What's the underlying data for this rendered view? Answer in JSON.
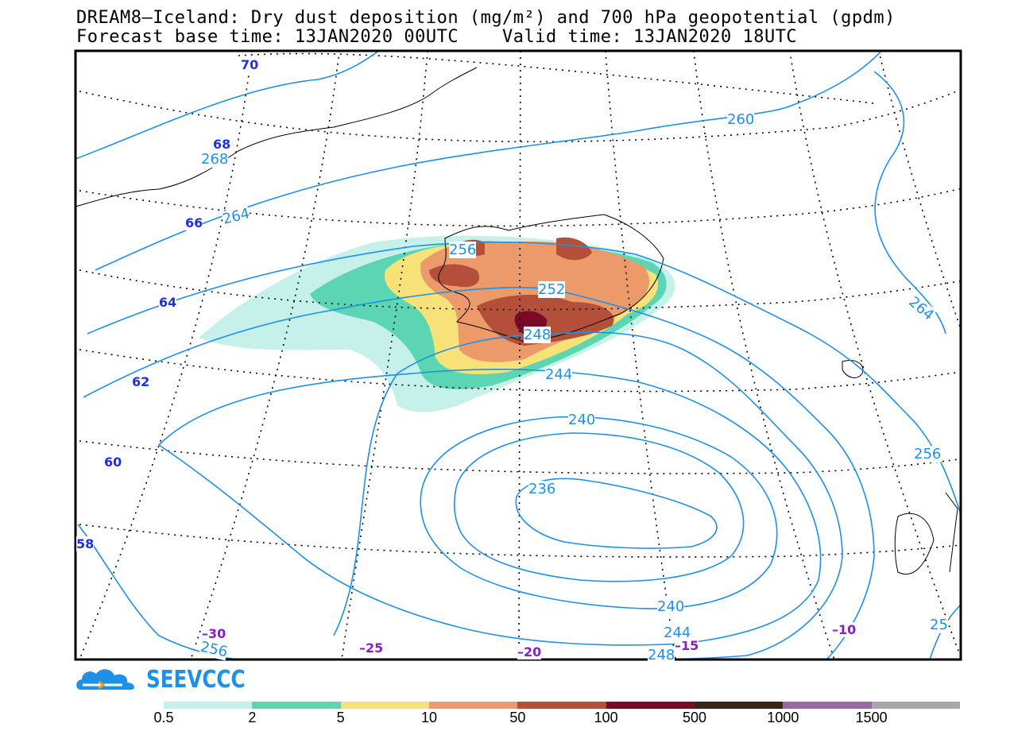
{
  "header": {
    "title_line1": "DREAM8–Iceland: Dry dust deposition (mg/m²) and 700 hPa geopotential (gpdm)",
    "title_line2": "Forecast base time: 13JAN2020 00UTC    Valid time: 13JAN2020 18UTC"
  },
  "map": {
    "latitude_labels": [
      "70",
      "68",
      "66",
      "64",
      "62",
      "60",
      "58"
    ],
    "longitude_labels": [
      "–30",
      "–25",
      "–20",
      "–15",
      "–10"
    ],
    "contour_labels": [
      "260",
      "268",
      "264",
      "256",
      "252",
      "248",
      "244",
      "240",
      "236",
      "264",
      "256",
      "256",
      "240",
      "244",
      "248",
      "25"
    ],
    "colors": {
      "contour": "#1e90e8",
      "latitude_label": "#2030e0",
      "longitude_label": "#8a1fc0"
    }
  },
  "logo": {
    "text": "SEEVCCC"
  },
  "legend": {
    "bins": [
      {
        "label": "0.5",
        "color": "#c6f1ea"
      },
      {
        "label": "2",
        "color": "#5cd6b2"
      },
      {
        "label": "5",
        "color": "#f7e27a"
      },
      {
        "label": "10",
        "color": "#ec9a6a"
      },
      {
        "label": "50",
        "color": "#b4503a"
      },
      {
        "label": "100",
        "color": "#7a0a28"
      },
      {
        "label": "500",
        "color": "#3a2416"
      },
      {
        "label": "1000",
        "color": "#9a6aa2"
      },
      {
        "label": "1500",
        "color": "#a8a8a8"
      }
    ]
  }
}
